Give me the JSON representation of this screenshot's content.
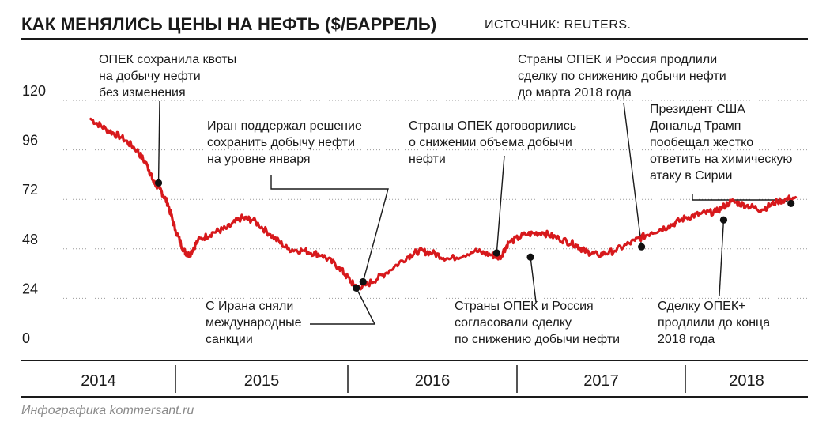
{
  "header": {
    "title": "КАК МЕНЯЛИСЬ ЦЕНЫ НА НЕФТЬ ($/БАРРЕЛЬ)",
    "source": "ИСТОЧНИК: REUTERS."
  },
  "footer": {
    "credit": "Инфографика kommersant.ru"
  },
  "colors": {
    "line": "#d7191c",
    "marker": "#111111",
    "text": "#1a1a1a",
    "credit": "#8a8a8a"
  },
  "chart_data": {
    "type": "line",
    "x_unit": "year (decimal)",
    "y_ticks": [
      0,
      24,
      48,
      72,
      96,
      120
    ],
    "ylim": [
      0,
      120
    ],
    "xlim": [
      2014.0,
      2018.8
    ],
    "x_tick_labels": [
      "2014",
      "2015",
      "2016",
      "2017",
      "2018"
    ],
    "year_boundaries": [
      2014.0,
      2015.0,
      2016.0,
      2017.0,
      2018.0,
      2018.8
    ],
    "grid": "dotted horizontal",
    "series": [
      {
        "values": [
          [
            2014.45,
            111
          ],
          [
            2014.55,
            106
          ],
          [
            2014.65,
            102
          ],
          [
            2014.75,
            96
          ],
          [
            2014.82,
            88
          ],
          [
            2014.86,
            80
          ],
          [
            2014.9,
            77
          ],
          [
            2014.95,
            70
          ],
          [
            2015.0,
            57
          ],
          [
            2015.05,
            47
          ],
          [
            2015.08,
            45
          ],
          [
            2015.13,
            52
          ],
          [
            2015.22,
            56
          ],
          [
            2015.3,
            58
          ],
          [
            2015.38,
            63
          ],
          [
            2015.45,
            62
          ],
          [
            2015.55,
            55
          ],
          [
            2015.65,
            48
          ],
          [
            2015.75,
            47
          ],
          [
            2015.85,
            45
          ],
          [
            2015.95,
            39
          ],
          [
            2016.02,
            32
          ],
          [
            2016.05,
            29
          ],
          [
            2016.12,
            31
          ],
          [
            2016.22,
            36
          ],
          [
            2016.35,
            44
          ],
          [
            2016.42,
            47
          ],
          [
            2016.5,
            46
          ],
          [
            2016.6,
            43
          ],
          [
            2016.75,
            47
          ],
          [
            2016.85,
            45
          ],
          [
            2016.9,
            44
          ],
          [
            2016.95,
            51
          ],
          [
            2017.05,
            55
          ],
          [
            2017.15,
            56
          ],
          [
            2017.25,
            53
          ],
          [
            2017.35,
            50
          ],
          [
            2017.4,
            47
          ],
          [
            2017.48,
            45
          ],
          [
            2017.58,
            47
          ],
          [
            2017.7,
            52
          ],
          [
            2017.8,
            56
          ],
          [
            2017.9,
            59
          ],
          [
            2018.0,
            63
          ],
          [
            2018.1,
            65
          ],
          [
            2018.2,
            66
          ],
          [
            2018.3,
            71
          ],
          [
            2018.4,
            69
          ],
          [
            2018.5,
            67
          ],
          [
            2018.6,
            71
          ],
          [
            2018.72,
            73
          ]
        ]
      }
    ],
    "events": [
      {
        "id": "opec-quota",
        "x": 2014.89,
        "y": 80,
        "label": [
          "ОПЕК сохранила квоты",
          "на добычу нефти",
          "без изменения"
        ],
        "label_side": "above"
      },
      {
        "id": "iran-sanctions",
        "x": 2016.05,
        "y": 29,
        "label": [
          "С Ирана сняли",
          "международные",
          "санкции"
        ],
        "label_side": "below"
      },
      {
        "id": "iran-supports",
        "x": 2016.09,
        "y": 32,
        "label": [
          "Иран поддержал решение",
          "сохранить добычу нефти",
          "на уровне января"
        ],
        "label_side": "above"
      },
      {
        "id": "opec-agree",
        "x": 2016.88,
        "y": 46,
        "label": [
          "Страны ОПЕК договорились",
          "о снижении объема добычи",
          "нефти"
        ],
        "label_side": "above"
      },
      {
        "id": "opec-russia-deal",
        "x": 2017.08,
        "y": 44,
        "label": [
          "Страны ОПЕК и Россия",
          "согласовали сделку",
          "по снижению добычи нефти"
        ],
        "label_side": "below"
      },
      {
        "id": "extend-march",
        "x": 2017.74,
        "y": 49,
        "label": [
          "Страны ОПЕК и Россия продлили",
          "сделку по снижению добычи нефти",
          "до марта 2018 года"
        ],
        "label_side": "above"
      },
      {
        "id": "opec-plus-extend",
        "x": 2018.25,
        "y": 62,
        "label": [
          "Сделку ОПЕК+",
          "продлили до конца",
          "2018 года"
        ],
        "label_side": "below"
      },
      {
        "id": "trump-syria",
        "x": 2018.69,
        "y": 70,
        "label": [
          "Президент США",
          "Дональд Трамп",
          "пообещал жестко",
          "ответить на химическую",
          "атаку в Сирии"
        ],
        "label_side": "above"
      }
    ]
  }
}
